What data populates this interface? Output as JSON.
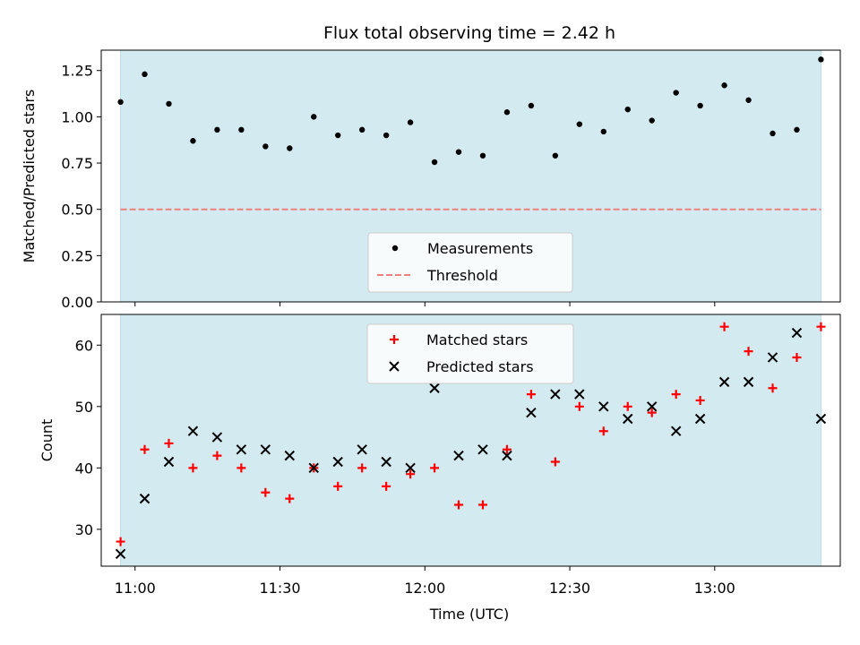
{
  "chart_data": [
    {
      "type": "scatter",
      "title": "Flux total observing time = 2.42 h",
      "xlabel": "",
      "ylabel": "Matched/Predicted stars",
      "ylim": [
        0.0,
        1.36
      ],
      "yticks": [
        "0.00",
        "0.25",
        "0.50",
        "0.75",
        "1.00",
        "1.25"
      ],
      "ytick_values": [
        0,
        0.25,
        0.5,
        0.75,
        1.0,
        1.25
      ],
      "observing_window": [
        "10:57",
        "13:22"
      ],
      "threshold": 0.5,
      "threshold_color": "#f08080",
      "window_color": "#d4eaf1",
      "legend": [
        {
          "label": "Measurements",
          "marker": "dot",
          "color": "#000000"
        },
        {
          "label": "Threshold",
          "marker": "dashed-line",
          "color": "#f08080"
        }
      ],
      "legend_position": "lower-center",
      "series": [
        {
          "name": "Measurements",
          "x": [
            "10:57",
            "11:02",
            "11:07",
            "11:12",
            "11:17",
            "11:22",
            "11:27",
            "11:32",
            "11:37",
            "11:42",
            "11:47",
            "11:52",
            "11:57",
            "12:02",
            "12:07",
            "12:12",
            "12:17",
            "12:22",
            "12:27",
            "12:32",
            "12:37",
            "12:42",
            "12:47",
            "12:52",
            "12:57",
            "13:02",
            "13:07",
            "13:12",
            "13:17",
            "13:22"
          ],
          "values": [
            1.08,
            1.23,
            1.07,
            0.87,
            0.93,
            0.93,
            0.84,
            0.83,
            1.0,
            0.9,
            0.93,
            0.9,
            0.97,
            0.755,
            0.81,
            0.79,
            1.025,
            1.06,
            0.79,
            0.96,
            0.92,
            1.04,
            0.98,
            1.13,
            1.06,
            1.17,
            1.09,
            0.91,
            0.93,
            1.31
          ]
        }
      ]
    },
    {
      "type": "scatter",
      "title": "",
      "xlabel": "Time (UTC)",
      "ylabel": "Count",
      "ylim": [
        24,
        65
      ],
      "yticks": [
        "30",
        "40",
        "50",
        "60"
      ],
      "ytick_values": [
        30,
        40,
        50,
        60
      ],
      "xticks": [
        "11:00",
        "11:30",
        "12:00",
        "12:30",
        "13:00"
      ],
      "xlim": [
        "10:53",
        "13:26"
      ],
      "legend": [
        {
          "label": "Matched stars",
          "marker": "plus",
          "color": "#ff0000"
        },
        {
          "label": "Predicted stars",
          "marker": "x",
          "color": "#000000"
        }
      ],
      "legend_position": "upper-center",
      "series": [
        {
          "name": "Matched stars",
          "x": [
            "10:57",
            "11:02",
            "11:07",
            "11:12",
            "11:17",
            "11:22",
            "11:27",
            "11:32",
            "11:37",
            "11:42",
            "11:47",
            "11:52",
            "11:57",
            "12:02",
            "12:07",
            "12:12",
            "12:17",
            "12:22",
            "12:27",
            "12:32",
            "12:37",
            "12:42",
            "12:47",
            "12:52",
            "12:57",
            "13:02",
            "13:07",
            "13:12",
            "13:17",
            "13:22"
          ],
          "values": [
            28,
            43,
            44,
            40,
            42,
            40,
            36,
            35,
            40,
            37,
            40,
            37,
            39,
            40,
            34,
            34,
            43,
            52,
            41,
            50,
            46,
            50,
            49,
            52,
            51,
            63,
            59,
            53,
            58,
            63
          ]
        },
        {
          "name": "Predicted stars",
          "x": [
            "10:57",
            "11:02",
            "11:07",
            "11:12",
            "11:17",
            "11:22",
            "11:27",
            "11:32",
            "11:37",
            "11:42",
            "11:47",
            "11:52",
            "11:57",
            "12:02",
            "12:07",
            "12:12",
            "12:17",
            "12:22",
            "12:27",
            "12:32",
            "12:37",
            "12:42",
            "12:47",
            "12:52",
            "12:57",
            "13:02",
            "13:07",
            "13:12",
            "13:17",
            "13:22"
          ],
          "values": [
            26,
            35,
            41,
            46,
            45,
            43,
            43,
            42,
            40,
            41,
            43,
            41,
            40,
            53,
            42,
            43,
            42,
            49,
            52,
            52,
            50,
            48,
            50,
            46,
            48,
            54,
            54,
            58,
            62,
            48
          ]
        }
      ]
    }
  ]
}
